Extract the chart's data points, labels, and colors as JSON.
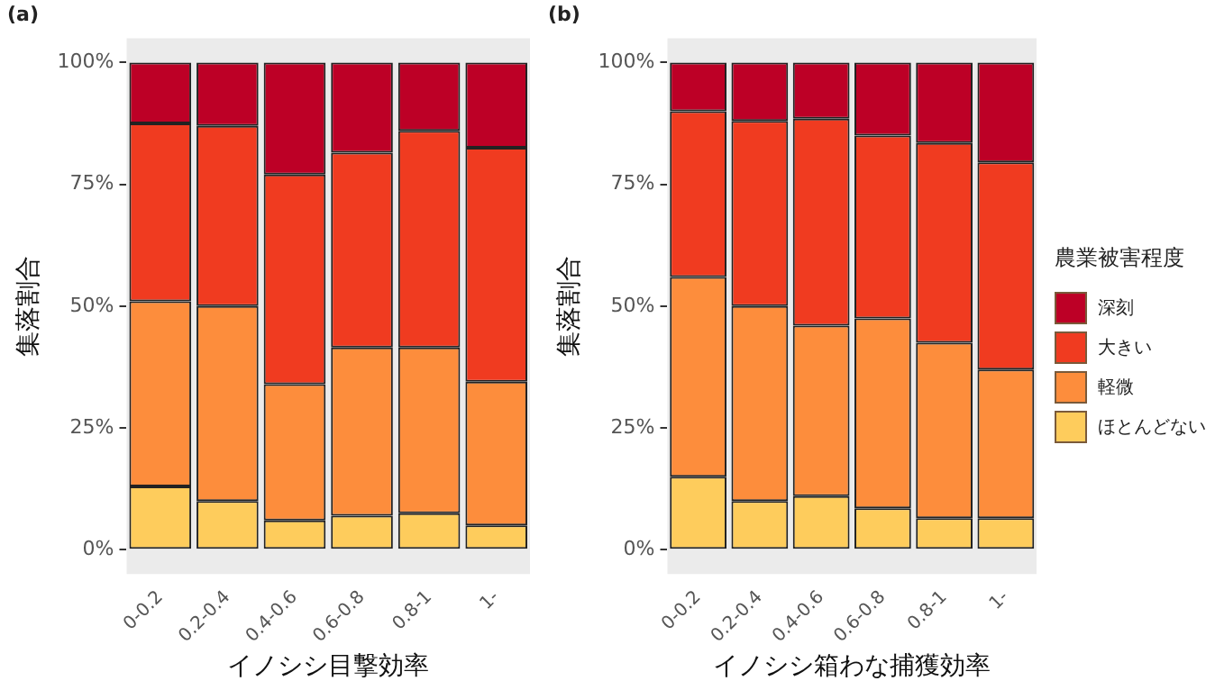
{
  "chart_data": [
    {
      "type": "bar",
      "title": "(a)",
      "xlabel": "イノシシ目撃効率",
      "ylabel": "集落割合",
      "stacked": true,
      "grid": false,
      "legend": false,
      "categories": [
        "0-0.2",
        "0.2-0.4",
        "0.4-0.6",
        "0.6-0.8",
        "0.8-1",
        "1-"
      ],
      "ylim": [
        -5,
        105
      ],
      "yticks": [
        {
          "value": 0,
          "label": "0%"
        },
        {
          "value": 25,
          "label": "25%"
        },
        {
          "value": 50,
          "label": "50%"
        },
        {
          "value": 75,
          "label": "75%"
        },
        {
          "value": 100,
          "label": "100%"
        }
      ],
      "series": [
        {
          "color": "#fecc5c",
          "values": [
            13,
            10,
            6,
            7,
            7.5,
            5
          ]
        },
        {
          "color": "#fd8d3c",
          "values": [
            38,
            40,
            28,
            34.5,
            34,
            29.5
          ]
        },
        {
          "color": "#f03b20",
          "values": [
            36.5,
            37,
            43,
            40,
            44.5,
            48
          ]
        },
        {
          "color": "#bd0026",
          "values": [
            12.5,
            13,
            23,
            18.5,
            14,
            17.5
          ]
        }
      ]
    },
    {
      "type": "bar",
      "title": "(b)",
      "xlabel": "イノシシ箱わな捕獲効率",
      "ylabel": "集落割合",
      "stacked": true,
      "grid": false,
      "legend": "right",
      "legend_title": "農業被害程度",
      "categories": [
        "0-0.2",
        "0.2-0.4",
        "0.4-0.6",
        "0.6-0.8",
        "0.8-1",
        "1-"
      ],
      "ylim": [
        -5,
        105
      ],
      "yticks": [
        {
          "value": 0,
          "label": "0%"
        },
        {
          "value": 25,
          "label": "25%"
        },
        {
          "value": 50,
          "label": "50%"
        },
        {
          "value": 75,
          "label": "75%"
        },
        {
          "value": 100,
          "label": "100%"
        }
      ],
      "series": [
        {
          "name": "ほとんどない",
          "color": "#fecc5c",
          "values": [
            15,
            10,
            11,
            8.5,
            6.5,
            6.5
          ]
        },
        {
          "name": "軽微",
          "color": "#fd8d3c",
          "values": [
            41,
            40,
            35,
            39,
            36,
            30.5
          ]
        },
        {
          "name": "大きい",
          "color": "#f03b20",
          "values": [
            34,
            38,
            42.5,
            37.5,
            41,
            42.5
          ]
        },
        {
          "name": "深刻",
          "color": "#bd0026",
          "values": [
            10,
            12,
            11.5,
            15,
            16.5,
            20.5
          ]
        }
      ]
    }
  ]
}
